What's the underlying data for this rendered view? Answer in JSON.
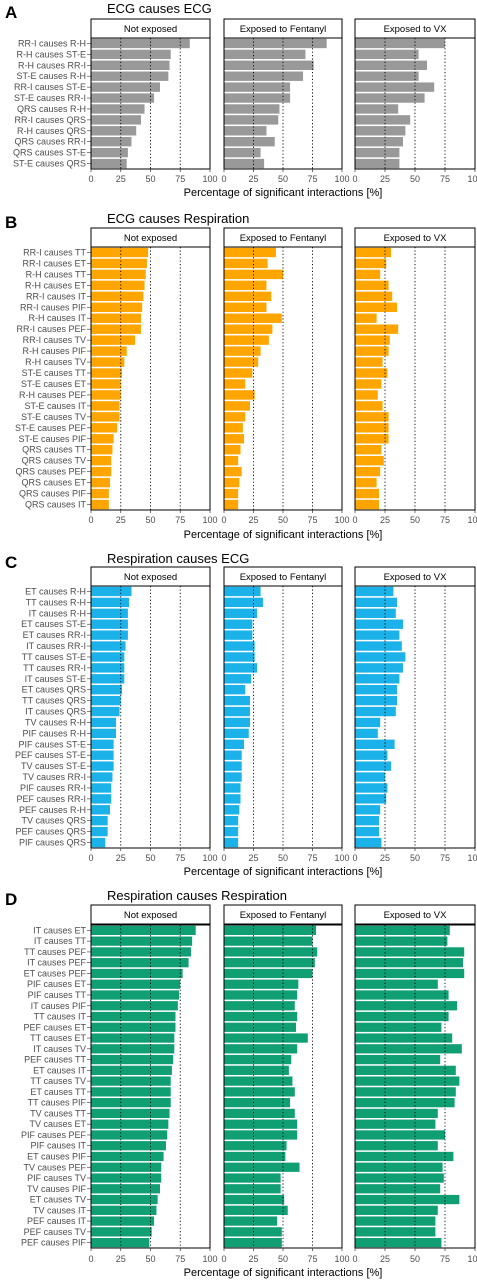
{
  "facets": [
    "Not exposed",
    "Exposed to Fentanyl",
    "Exposed to VX"
  ],
  "xticks": [
    0,
    25,
    50,
    75,
    100
  ],
  "chart_data": [
    {
      "panel": "A",
      "type": "bar",
      "orientation": "horizontal",
      "title": "ECG causes ECG",
      "xlabel": "Percentage of significant interactions [%]",
      "xlim": [
        0,
        100
      ],
      "color": "#999999",
      "facets": [
        "Not exposed",
        "Exposed to Fentanyl",
        "Exposed to VX"
      ],
      "reference_lines": [
        25,
        50,
        75
      ],
      "categories": [
        "RR-I causes R-H",
        "R-H causes ST-E",
        "R-H causes RR-I",
        "ST-E causes R-H",
        "RR-I causes ST-E",
        "ST-E causes RR-I",
        "QRS causes R-H",
        "RR-I causes QRS",
        "R-H causes QRS",
        "QRS causes RR-I",
        "QRS causes ST-E",
        "ST-E causes QRS"
      ],
      "series": [
        {
          "name": "Not exposed",
          "values": [
            83,
            67,
            66,
            65,
            58,
            53,
            45,
            42,
            38,
            34,
            31,
            30
          ]
        },
        {
          "name": "Exposed to Fentanyl",
          "values": [
            87,
            69,
            76,
            67,
            56,
            56,
            47,
            46,
            36,
            43,
            31,
            34
          ]
        },
        {
          "name": "Exposed to VX",
          "values": [
            75,
            53,
            60,
            53,
            66,
            58,
            36,
            46,
            42,
            40,
            37,
            37
          ]
        }
      ]
    },
    {
      "panel": "B",
      "type": "bar",
      "orientation": "horizontal",
      "title": "ECG causes Respiration",
      "xlabel": "Percentage of significant interactions [%]",
      "xlim": [
        0,
        100
      ],
      "color": "#FFA500",
      "facets": [
        "Not exposed",
        "Exposed to Fentanyl",
        "Exposed to VX"
      ],
      "reference_lines": [
        25,
        50,
        75
      ],
      "categories": [
        "RR-I causes TT",
        "RR-I causes ET",
        "R-H causes TT",
        "R-H causes ET",
        "RR-I causes IT",
        "RR-I causes PIF",
        "R-H causes IT",
        "RR-I causes PEF",
        "RR-I causes TV",
        "R-H causes PIF",
        "R-H causes TV",
        "ST-E causes TT",
        "ST-E causes ET",
        "R-H causes PEF",
        "ST-E causes IT",
        "ST-E causes TV",
        "ST-E causes PEF",
        "ST-E causes PIF",
        "QRS causes TT",
        "QRS causes TV",
        "QRS causes PEF",
        "QRS causes ET",
        "QRS causes PIF",
        "QRS causes IT"
      ],
      "series": [
        {
          "name": "Not exposed",
          "values": [
            48,
            47,
            46,
            45,
            44,
            43,
            42,
            42,
            37,
            30,
            28,
            26,
            25,
            25,
            24,
            24,
            22,
            19,
            18,
            17,
            17,
            16,
            15,
            15
          ]
        },
        {
          "name": "Exposed to Fentanyl",
          "values": [
            44,
            37,
            50,
            36,
            40,
            36,
            49,
            41,
            38,
            31,
            29,
            24,
            18,
            26,
            22,
            18,
            16,
            17,
            14,
            12,
            15,
            13,
            12,
            12
          ]
        },
        {
          "name": "Exposed to VX",
          "values": [
            30,
            26,
            21,
            28,
            31,
            35,
            18,
            36,
            29,
            28,
            23,
            27,
            22,
            19,
            23,
            28,
            28,
            28,
            22,
            24,
            21,
            18,
            20,
            20
          ]
        }
      ]
    },
    {
      "panel": "C",
      "type": "bar",
      "orientation": "horizontal",
      "title": "Respiration causes ECG",
      "xlabel": "Percentage of significant interactions [%]",
      "xlim": [
        0,
        100
      ],
      "color": "#1AB2E8",
      "facets": [
        "Not exposed",
        "Exposed to Fentanyl",
        "Exposed to VX"
      ],
      "reference_lines": [
        25,
        50,
        75
      ],
      "categories": [
        "ET causes R-H",
        "TT causes R-H",
        "IT causes R-H",
        "ET causes ST-E",
        "ET causes RR-I",
        "IT causes RR-I",
        "TT causes ST-E",
        "TT causes RR-I",
        "IT causes ST-E",
        "ET causes QRS",
        "TT causes QRS",
        "IT causes QRS",
        "TV causes R-H",
        "PIF causes R-H",
        "PIF causes ST-E",
        "PEF causes ST-E",
        "TV causes ST-E",
        "TV causes RR-I",
        "PIF causes RR-I",
        "PEF causes RR-I",
        "PEF causes R-H",
        "TV causes QRS",
        "PEF causes QRS",
        "PIF causes QRS"
      ],
      "series": [
        {
          "name": "Not exposed",
          "values": [
            34,
            32,
            31,
            31,
            31,
            29,
            28,
            28,
            28,
            26,
            25,
            24,
            21,
            21,
            19,
            19,
            19,
            18,
            17,
            17,
            16,
            14,
            14,
            12
          ]
        },
        {
          "name": "Exposed to Fentanyl",
          "values": [
            31,
            33,
            28,
            24,
            24,
            26,
            26,
            28,
            23,
            18,
            22,
            22,
            22,
            21,
            17,
            15,
            15,
            15,
            14,
            14,
            13,
            12,
            12,
            12
          ]
        },
        {
          "name": "Exposed to VX",
          "values": [
            32,
            35,
            34,
            40,
            37,
            39,
            42,
            40,
            37,
            35,
            35,
            34,
            21,
            19,
            33,
            27,
            30,
            25,
            27,
            26,
            21,
            20,
            20,
            22
          ]
        }
      ]
    },
    {
      "panel": "D",
      "type": "bar",
      "orientation": "horizontal",
      "title": "Respiration causes Respiration",
      "xlabel": "Percentage of significant interactions [%]",
      "xlim": [
        0,
        100
      ],
      "color": "#109E73",
      "facets": [
        "Not exposed",
        "Exposed to Fentanyl",
        "Exposed to VX"
      ],
      "reference_lines": [
        25,
        50,
        75
      ],
      "categories": [
        "IT causes ET",
        "IT causes TT",
        "TT causes PEF",
        "IT causes PEF",
        "ET causes PEF",
        "PIF causes ET",
        "PIF causes TT",
        "IT causes PIF",
        "TT causes IT",
        "PEF causes ET",
        "TT causes ET",
        "IT causes TV",
        "PEF causes TT",
        "ET causes IT",
        "TT causes TV",
        "ET causes TT",
        "TT causes PIF",
        "TV causes TT",
        "TV causes ET",
        "PIF causes PEF",
        "PIF causes IT",
        "ET causes PIF",
        "TV causes PEF",
        "PIF causes TV",
        "TV causes PIF",
        "ET causes TV",
        "TV causes IT",
        "PEF causes IT",
        "PEF causes TV",
        "PEF causes PIF"
      ],
      "series": [
        {
          "name": "Not exposed",
          "values": [
            88,
            85,
            84,
            82,
            77,
            75,
            74,
            73,
            71,
            71,
            70,
            70,
            69,
            68,
            67,
            67,
            67,
            66,
            65,
            64,
            63,
            61,
            59,
            59,
            58,
            56,
            55,
            53,
            51,
            49
          ]
        },
        {
          "name": "Exposed to Fentanyl",
          "values": [
            78,
            75,
            79,
            77,
            75,
            63,
            62,
            60,
            62,
            61,
            71,
            62,
            57,
            55,
            58,
            60,
            56,
            60,
            62,
            62,
            53,
            52,
            64,
            48,
            48,
            51,
            54,
            45,
            49,
            49
          ]
        },
        {
          "name": "Exposed to VX",
          "values": [
            79,
            77,
            91,
            90,
            91,
            69,
            78,
            85,
            78,
            72,
            81,
            89,
            71,
            84,
            87,
            84,
            83,
            69,
            67,
            75,
            69,
            82,
            73,
            74,
            71,
            87,
            69,
            67,
            67,
            72
          ]
        }
      ]
    }
  ]
}
